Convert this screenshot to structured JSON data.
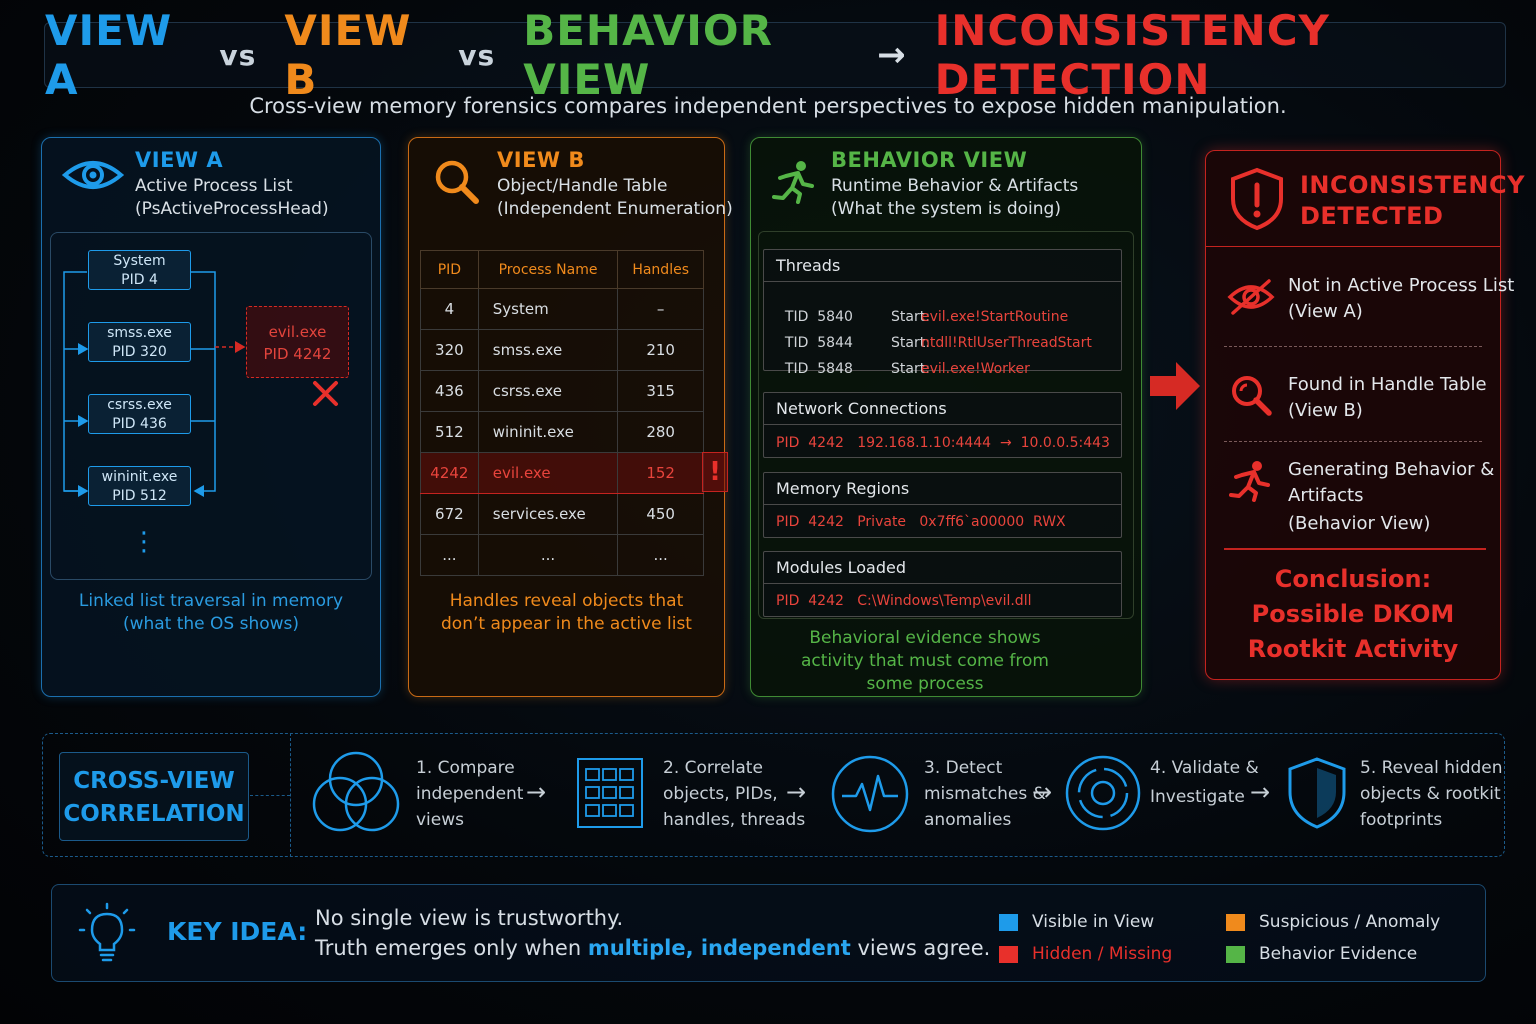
{
  "title": {
    "view_a": "VIEW A",
    "vs1": "vs",
    "view_b": "VIEW B",
    "vs2": "vs",
    "behavior": "BEHAVIOR VIEW",
    "arrow": "→",
    "inconsistency": "INCONSISTENCY DETECTION"
  },
  "subtitle": "Cross-view memory forensics compares independent perspectives to expose hidden manipulation.",
  "view_a": {
    "title": "VIEW A",
    "subtitle1": "Active Process List",
    "subtitle2": "(PsActiveProcessHead)",
    "nodes": [
      {
        "name": "System",
        "pid": "PID 4"
      },
      {
        "name": "smss.exe",
        "pid": "PID 320"
      },
      {
        "name": "csrss.exe",
        "pid": "PID 436"
      },
      {
        "name": "wininit.exe",
        "pid": "PID 512"
      }
    ],
    "hidden": {
      "name": "evil.exe",
      "pid": "PID 4242"
    },
    "more": "⋮",
    "caption1": "Linked list traversal in memory",
    "caption2": "(what the OS shows)"
  },
  "view_b": {
    "title": "VIEW B",
    "subtitle1": "Object/Handle Table",
    "subtitle2": "(Independent Enumeration)",
    "columns": [
      "PID",
      "Process Name",
      "Handles"
    ],
    "rows": [
      {
        "pid": "4",
        "name": "System",
        "handles": "–"
      },
      {
        "pid": "320",
        "name": "smss.exe",
        "handles": "210"
      },
      {
        "pid": "436",
        "name": "csrss.exe",
        "handles": "315"
      },
      {
        "pid": "512",
        "name": "wininit.exe",
        "handles": "280"
      },
      {
        "pid": "4242",
        "name": "evil.exe",
        "handles": "152"
      },
      {
        "pid": "672",
        "name": "services.exe",
        "handles": "450"
      },
      {
        "pid": "...",
        "name": "...",
        "handles": "..."
      }
    ],
    "alert": "!",
    "caption1": "Handles reveal objects that",
    "caption2": "don’t appear in the active list"
  },
  "behavior": {
    "title": "BEHAVIOR VIEW",
    "subtitle1": "Runtime Behavior & Artifacts",
    "subtitle2": "(What the system is doing)",
    "threads": {
      "header": "Threads",
      "rows": [
        {
          "tid": "TID  5840",
          "label": "Start:",
          "value": "evil.exe!StartRoutine"
        },
        {
          "tid": "TID  5844",
          "label": "Start:",
          "value": "ntdll!RtlUserThreadStart"
        },
        {
          "tid": "TID  5848",
          "label": "Start:",
          "value": "evil.exe!Worker"
        }
      ]
    },
    "network": {
      "header": "Network Connections",
      "row": "PID  4242   192.168.1.10:4444  →  10.0.0.5:443"
    },
    "memory": {
      "header": "Memory Regions",
      "row": "PID  4242   Private   0x7ff6`a00000  RWX"
    },
    "modules": {
      "header": "Modules Loaded",
      "row": "PID  4242   C:\\Windows\\Temp\\evil.dll"
    },
    "caption1": "Behavioral evidence shows",
    "caption2": "activity that must come from",
    "caption3": "some process"
  },
  "inconsistency": {
    "title1": "INCONSISTENCY",
    "title2": "DETECTED",
    "items": [
      {
        "line1": "Not in Active Process List",
        "line2": "(View A)"
      },
      {
        "line1": "Found in Handle Table",
        "line2": "(View B)"
      },
      {
        "line1": "Generating Behavior &",
        "line2": "Artifacts",
        "line3": "(Behavior View)"
      }
    ],
    "conclusion1": "Conclusion:",
    "conclusion2": "Possible DKOM",
    "conclusion3": "Rootkit Activity"
  },
  "correlation": {
    "label1": "CROSS-VIEW",
    "label2": "CORRELATION",
    "steps": [
      {
        "l1": "1. Compare",
        "l2": "independent",
        "l3": "views",
        "icon": "venn-icon"
      },
      {
        "l1": "2. Correlate",
        "l2": "objects, PIDs,",
        "l3": "handles, threads",
        "icon": "grid-icon"
      },
      {
        "l1": "3. Detect",
        "l2": "mismatches &",
        "l3": "anomalies",
        "icon": "pulse-icon"
      },
      {
        "l1": "4. Validate &",
        "l2": "Investigate",
        "l3": "",
        "icon": "target-icon"
      },
      {
        "l1": "5. Reveal hidden",
        "l2": "objects & rootkit",
        "l3": "footprints",
        "icon": "shield-icon"
      }
    ],
    "arrow": "→"
  },
  "key_idea": {
    "label": "KEY IDEA:",
    "line1": "No single view is trustworthy.",
    "line2_pre": "Truth emerges only when ",
    "line2_em": "multiple, independent",
    "line2_post": " views agree."
  },
  "legend": [
    {
      "label": "Visible in View",
      "color": "#1e9bea"
    },
    {
      "label": "Suspicious / Anomaly",
      "color": "#f08a1c"
    },
    {
      "label": "Hidden / Missing",
      "color": "#e8302b"
    },
    {
      "label": "Behavior Evidence",
      "color": "#55b547"
    }
  ],
  "colors": {
    "blue": "#1e9bea",
    "orange": "#f08a1c",
    "green": "#55b547",
    "red": "#e8302b"
  }
}
